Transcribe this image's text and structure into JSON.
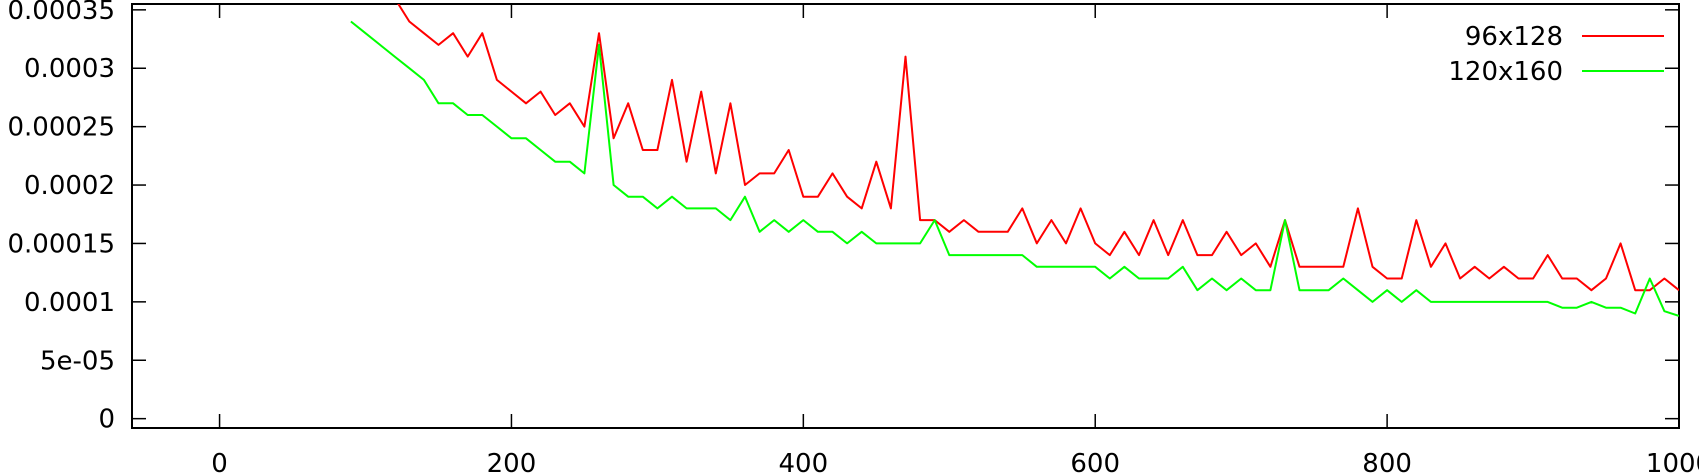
{
  "chart_data": {
    "type": "line",
    "title": "",
    "xlabel": "",
    "ylabel": "",
    "xlim": [
      -60,
      1000
    ],
    "ylim": [
      -8e-06,
      0.000355
    ],
    "grid": false,
    "legend_position": "top-right",
    "x_ticks": [
      {
        "value": 0,
        "label": "0"
      },
      {
        "value": 200,
        "label": "200"
      },
      {
        "value": 400,
        "label": "400"
      },
      {
        "value": 600,
        "label": "600"
      },
      {
        "value": 800,
        "label": "800"
      },
      {
        "value": 1000,
        "label": "1000"
      }
    ],
    "y_ticks": [
      {
        "value": 0,
        "label": "0"
      },
      {
        "value": 5e-05,
        "label": "5e-05"
      },
      {
        "value": 0.0001,
        "label": "0.0001"
      },
      {
        "value": 0.00015,
        "label": "0.00015"
      },
      {
        "value": 0.0002,
        "label": "0.0002"
      },
      {
        "value": 0.00025,
        "label": "0.00025"
      },
      {
        "value": 0.0003,
        "label": "0.0003"
      },
      {
        "value": 0.00035,
        "label": "0.00035"
      }
    ],
    "series": [
      {
        "name": "96x128",
        "color": "#ff0000",
        "x": [
          120,
          130,
          140,
          150,
          160,
          170,
          180,
          190,
          200,
          210,
          220,
          230,
          240,
          250,
          260,
          270,
          280,
          290,
          300,
          310,
          320,
          330,
          340,
          350,
          360,
          370,
          380,
          390,
          400,
          410,
          420,
          430,
          440,
          450,
          460,
          470,
          480,
          490,
          500,
          510,
          520,
          530,
          540,
          550,
          560,
          570,
          580,
          590,
          600,
          610,
          620,
          630,
          640,
          650,
          660,
          670,
          680,
          690,
          700,
          710,
          720,
          730,
          740,
          750,
          760,
          770,
          780,
          790,
          800,
          810,
          820,
          830,
          840,
          850,
          860,
          870,
          880,
          890,
          900,
          910,
          920,
          930,
          940,
          950,
          960,
          970,
          980,
          990,
          1000
        ],
        "y": [
          0.00036,
          0.00034,
          0.00033,
          0.00032,
          0.00033,
          0.00031,
          0.00033,
          0.00029,
          0.00028,
          0.00027,
          0.00028,
          0.00026,
          0.00027,
          0.00025,
          0.00033,
          0.00024,
          0.00027,
          0.00023,
          0.00023,
          0.00029,
          0.00022,
          0.00028,
          0.00021,
          0.00027,
          0.0002,
          0.00021,
          0.00021,
          0.00023,
          0.00019,
          0.00019,
          0.00021,
          0.00019,
          0.00018,
          0.00022,
          0.00018,
          0.00031,
          0.00017,
          0.00017,
          0.00016,
          0.00017,
          0.00016,
          0.00016,
          0.00016,
          0.00018,
          0.00015,
          0.00017,
          0.00015,
          0.00018,
          0.00015,
          0.00014,
          0.00016,
          0.00014,
          0.00017,
          0.00014,
          0.00017,
          0.00014,
          0.00014,
          0.00016,
          0.00014,
          0.00015,
          0.00013,
          0.00017,
          0.00013,
          0.00013,
          0.00013,
          0.00013,
          0.00018,
          0.00013,
          0.00012,
          0.00012,
          0.00017,
          0.00013,
          0.00015,
          0.00012,
          0.00013,
          0.00012,
          0.00013,
          0.00012,
          0.00012,
          0.00014,
          0.00012,
          0.00012,
          0.00011,
          0.00012,
          0.00015,
          0.00011,
          0.00011,
          0.00012,
          0.00011
        ]
      },
      {
        "name": "120x160",
        "color": "#00ff00",
        "x": [
          90,
          100,
          110,
          120,
          130,
          140,
          150,
          160,
          170,
          180,
          190,
          200,
          210,
          220,
          230,
          240,
          250,
          260,
          270,
          280,
          290,
          300,
          310,
          320,
          330,
          340,
          350,
          360,
          370,
          380,
          390,
          400,
          410,
          420,
          430,
          440,
          450,
          460,
          470,
          480,
          490,
          500,
          510,
          520,
          530,
          540,
          550,
          560,
          570,
          580,
          590,
          600,
          610,
          620,
          630,
          640,
          650,
          660,
          670,
          680,
          690,
          700,
          710,
          720,
          730,
          740,
          750,
          760,
          770,
          780,
          790,
          800,
          810,
          820,
          830,
          840,
          850,
          860,
          870,
          880,
          890,
          900,
          910,
          920,
          930,
          940,
          950,
          960,
          970,
          980,
          990,
          1000
        ],
        "y": [
          0.00034,
          0.00033,
          0.00032,
          0.00031,
          0.0003,
          0.00029,
          0.00027,
          0.00027,
          0.00026,
          0.00026,
          0.00025,
          0.00024,
          0.00024,
          0.00023,
          0.00022,
          0.00022,
          0.00021,
          0.00032,
          0.0002,
          0.00019,
          0.00019,
          0.00018,
          0.00019,
          0.00018,
          0.00018,
          0.00018,
          0.00017,
          0.00019,
          0.00016,
          0.00017,
          0.00016,
          0.00017,
          0.00016,
          0.00016,
          0.00015,
          0.00016,
          0.00015,
          0.00015,
          0.00015,
          0.00015,
          0.00017,
          0.00014,
          0.00014,
          0.00014,
          0.00014,
          0.00014,
          0.00014,
          0.00013,
          0.00013,
          0.00013,
          0.00013,
          0.00013,
          0.00012,
          0.00013,
          0.00012,
          0.00012,
          0.00012,
          0.00013,
          0.00011,
          0.00012,
          0.00011,
          0.00012,
          0.00011,
          0.00011,
          0.00017,
          0.00011,
          0.00011,
          0.00011,
          0.00012,
          0.00011,
          0.0001,
          0.00011,
          0.0001,
          0.00011,
          0.0001,
          0.0001,
          0.0001,
          0.0001,
          0.0001,
          0.0001,
          0.0001,
          0.0001,
          0.0001,
          9.5e-05,
          9.5e-05,
          0.0001,
          9.5e-05,
          9.5e-05,
          9e-05,
          0.00012,
          9.2e-05,
          8.8e-05
        ]
      }
    ]
  }
}
